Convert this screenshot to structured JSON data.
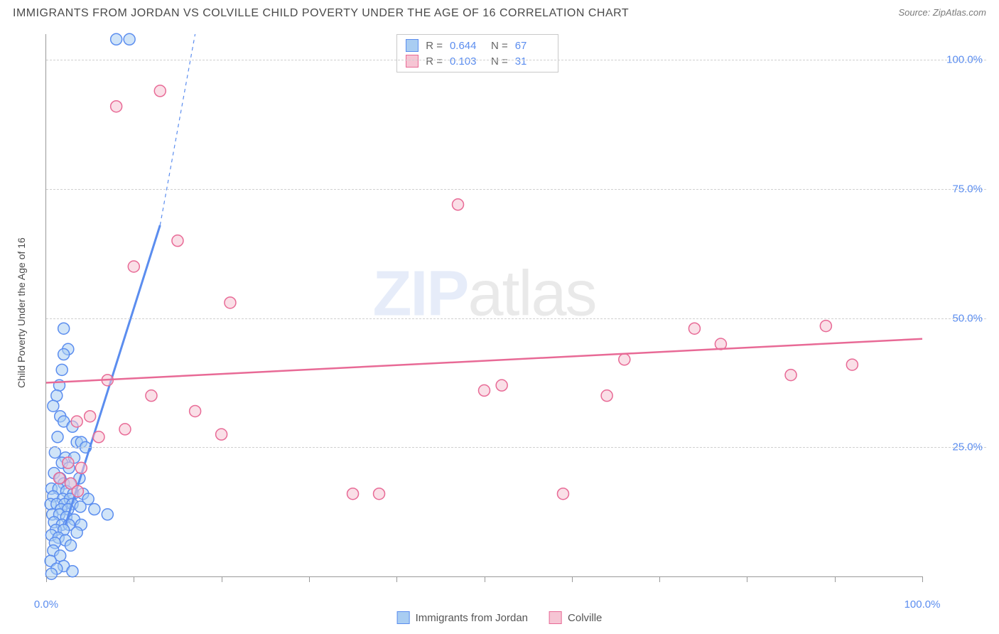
{
  "header": {
    "title": "IMMIGRANTS FROM JORDAN VS COLVILLE CHILD POVERTY UNDER THE AGE OF 16 CORRELATION CHART",
    "source_prefix": "Source: ",
    "source": "ZipAtlas.com"
  },
  "chart": {
    "type": "scatter",
    "y_axis_label": "Child Poverty Under the Age of 16",
    "xlim": [
      0,
      100
    ],
    "ylim": [
      0,
      105
    ],
    "x_ticks": [
      0,
      10,
      20,
      30,
      40,
      50,
      60,
      70,
      80,
      90,
      100
    ],
    "x_tick_labels": {
      "0": "0.0%",
      "100": "100.0%"
    },
    "y_grid": [
      25,
      50,
      75,
      100
    ],
    "y_tick_labels": {
      "25": "25.0%",
      "50": "50.0%",
      "75": "75.0%",
      "100": "100.0%"
    },
    "background_color": "#ffffff",
    "grid_color": "#d0d0d0",
    "axis_color": "#999999",
    "tick_label_color": "#5b8def",
    "marker_radius": 8,
    "marker_stroke_width": 1.5,
    "series": [
      {
        "name": "Immigrants from Jordan",
        "color_fill": "#a9cdf2",
        "color_stroke": "#5b8def",
        "fill_opacity": 0.55,
        "R": "0.644",
        "N": "67",
        "trend": {
          "x1": 2.2,
          "y1": 10,
          "x2": 13,
          "y2": 68,
          "dash_to_x": 17,
          "dash_to_y": 105,
          "width": 3
        },
        "points": [
          [
            8,
            104
          ],
          [
            9.5,
            104
          ],
          [
            2,
            48
          ],
          [
            2.5,
            44
          ],
          [
            2,
            43
          ],
          [
            1.8,
            40
          ],
          [
            1.5,
            37
          ],
          [
            1.2,
            35
          ],
          [
            0.8,
            33
          ],
          [
            1.6,
            31
          ],
          [
            2,
            30
          ],
          [
            3,
            29
          ],
          [
            1.3,
            27
          ],
          [
            3.5,
            26
          ],
          [
            4,
            26
          ],
          [
            4.5,
            25
          ],
          [
            1,
            24
          ],
          [
            2.2,
            23
          ],
          [
            3.2,
            23
          ],
          [
            1.8,
            22
          ],
          [
            2.6,
            21
          ],
          [
            0.9,
            20
          ],
          [
            1.6,
            19
          ],
          [
            3.8,
            19
          ],
          [
            2,
            18
          ],
          [
            2.8,
            18
          ],
          [
            0.6,
            17
          ],
          [
            1.4,
            17
          ],
          [
            2.3,
            16.5
          ],
          [
            3.1,
            16
          ],
          [
            4.2,
            16
          ],
          [
            0.8,
            15.5
          ],
          [
            1.9,
            15
          ],
          [
            2.7,
            15
          ],
          [
            4.8,
            15
          ],
          [
            0.5,
            14
          ],
          [
            1.2,
            14
          ],
          [
            2.1,
            14
          ],
          [
            3,
            14
          ],
          [
            3.9,
            13.5
          ],
          [
            1.7,
            13
          ],
          [
            2.5,
            13
          ],
          [
            5.5,
            13
          ],
          [
            7,
            12
          ],
          [
            0.7,
            12
          ],
          [
            1.5,
            12
          ],
          [
            2.3,
            11.5
          ],
          [
            3.2,
            11
          ],
          [
            0.9,
            10.5
          ],
          [
            1.8,
            10
          ],
          [
            2.6,
            10
          ],
          [
            4,
            10
          ],
          [
            1.1,
            9
          ],
          [
            2,
            9
          ],
          [
            3.5,
            8.5
          ],
          [
            0.6,
            8
          ],
          [
            1.4,
            7.5
          ],
          [
            2.2,
            7
          ],
          [
            1,
            6.5
          ],
          [
            2.8,
            6
          ],
          [
            0.8,
            5
          ],
          [
            1.6,
            4
          ],
          [
            0.5,
            3
          ],
          [
            2,
            2
          ],
          [
            1.2,
            1.5
          ],
          [
            3,
            1
          ],
          [
            0.6,
            0.5
          ]
        ]
      },
      {
        "name": "Colville",
        "color_fill": "#f6c5d4",
        "color_stroke": "#e86a96",
        "fill_opacity": 0.55,
        "R": "0.103",
        "N": "31",
        "trend": {
          "x1": 0,
          "y1": 37.5,
          "x2": 100,
          "y2": 46,
          "width": 2.5
        },
        "points": [
          [
            13,
            94
          ],
          [
            8,
            91
          ],
          [
            10,
            60
          ],
          [
            15,
            65
          ],
          [
            47,
            72
          ],
          [
            21,
            53
          ],
          [
            7,
            38
          ],
          [
            12,
            35
          ],
          [
            5,
            31
          ],
          [
            3.5,
            30
          ],
          [
            9,
            28.5
          ],
          [
            17,
            32
          ],
          [
            20,
            27.5
          ],
          [
            6,
            27
          ],
          [
            2.5,
            22
          ],
          [
            4,
            21
          ],
          [
            1.5,
            19
          ],
          [
            2.8,
            18
          ],
          [
            3.6,
            16.5
          ],
          [
            35,
            16
          ],
          [
            38,
            16
          ],
          [
            59,
            16
          ],
          [
            50,
            36
          ],
          [
            52,
            37
          ],
          [
            66,
            42
          ],
          [
            64,
            35
          ],
          [
            77,
            45
          ],
          [
            74,
            48
          ],
          [
            89,
            48.5
          ],
          [
            85,
            39
          ],
          [
            92,
            41
          ]
        ]
      }
    ],
    "legend_bottom": [
      {
        "label": "Immigrants from Jordan",
        "fill": "#a9cdf2",
        "stroke": "#5b8def"
      },
      {
        "label": "Colville",
        "fill": "#f6c5d4",
        "stroke": "#e86a96"
      }
    ],
    "legend_corr_labels": {
      "R": "R =",
      "N": "N ="
    }
  },
  "watermark": {
    "part1": "ZIP",
    "part2": "atlas"
  }
}
